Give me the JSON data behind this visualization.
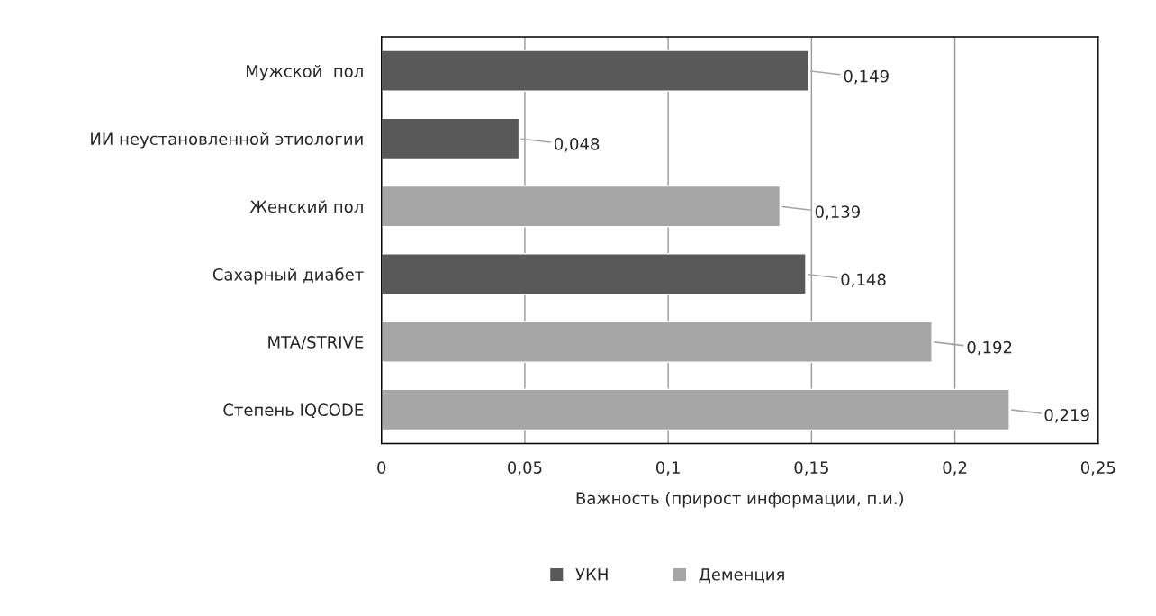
{
  "chart_data": {
    "type": "bar",
    "orientation": "horizontal",
    "categories": [
      "Мужской  пол",
      "ИИ неустановленной этиологии",
      "Женский пол",
      "Сахарный диабет",
      "MTA/STRIVE",
      "Степень IQCODE"
    ],
    "series": [
      {
        "name": "УКН",
        "color": "#595959",
        "values": [
          0.149,
          0.048,
          null,
          0.148,
          null,
          null
        ],
        "value_labels": [
          "0,149",
          "0,048",
          null,
          "0,148",
          null,
          null
        ]
      },
      {
        "name": "Деменция",
        "color": "#a6a6a6",
        "values": [
          null,
          null,
          0.139,
          null,
          0.192,
          0.219
        ],
        "value_labels": [
          null,
          null,
          "0,139",
          null,
          "0,192",
          "0,219"
        ]
      }
    ],
    "xlabel": "Важность (прирост информации, п.и.)",
    "xlim": [
      0,
      0.25
    ],
    "xticks": [
      0,
      {
        "value": 0.05,
        "label": "0,05"
      },
      {
        "value": 0.1,
        "label": "0,1"
      },
      {
        "value": 0.15,
        "label": "0,15"
      },
      {
        "value": 0.2,
        "label": "0,2"
      },
      {
        "value": 0.25,
        "label": "0,25"
      }
    ],
    "grid": "x",
    "legend": "bottom"
  }
}
